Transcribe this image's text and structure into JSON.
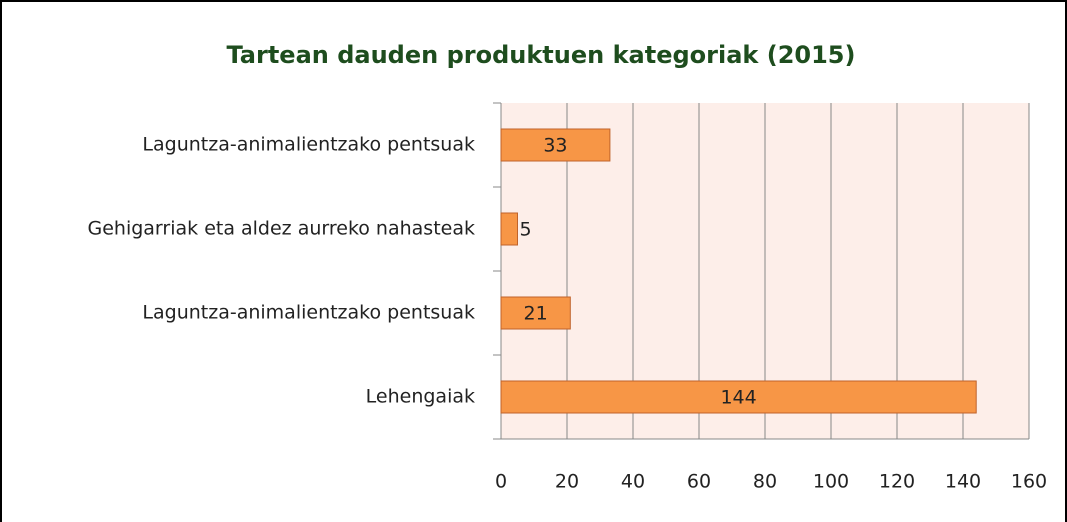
{
  "chart_data": {
    "type": "bar",
    "orientation": "horizontal",
    "title": "Tartean dauden produktuen kategoriak (2015)",
    "categories": [
      "Laguntza-animalientzako pentsuak",
      "Gehigarriak eta aldez aurreko nahasteak",
      "Laguntza-animalientzako pentsuak",
      "Lehengaiak"
    ],
    "values": [
      33,
      5,
      21,
      144
    ],
    "color": "#f79646",
    "xlim": [
      0,
      160
    ],
    "xticks": [
      0,
      20,
      40,
      60,
      80,
      100,
      120,
      140,
      160
    ],
    "grid": true
  }
}
